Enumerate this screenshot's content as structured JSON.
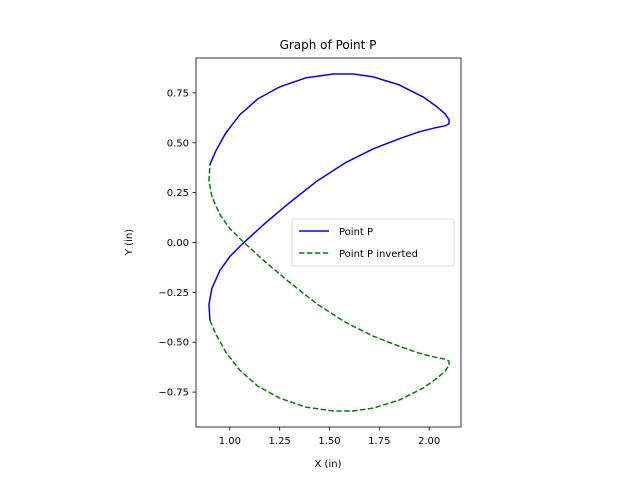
{
  "chart_data": {
    "type": "line",
    "title": "Graph of Point P",
    "xlabel": "X (in)",
    "ylabel": "Y (in)",
    "xlim": [
      0.83,
      2.16
    ],
    "ylim": [
      -0.925,
      0.925
    ],
    "xticks": [
      1.0,
      1.25,
      1.5,
      1.75,
      2.0
    ],
    "xtick_labels": [
      "1.00",
      "1.25",
      "1.50",
      "1.75",
      "2.00"
    ],
    "yticks": [
      -0.75,
      -0.5,
      -0.25,
      0.0,
      0.25,
      0.5,
      0.75
    ],
    "ytick_labels": [
      "−0.75",
      "−0.50",
      "−0.25",
      "0.00",
      "0.25",
      "0.50",
      "0.75"
    ],
    "grid": false,
    "legend_position": "center-right",
    "series": [
      {
        "name": "Point P",
        "color": "#0000ff",
        "style": "solid",
        "x": [
          0.9,
          0.93,
          0.98,
          1.05,
          1.14,
          1.25,
          1.38,
          1.52,
          1.62,
          1.72,
          1.85,
          1.97,
          2.04,
          2.08,
          2.1,
          2.1,
          2.08,
          2.03,
          1.95,
          1.85,
          1.72,
          1.58,
          1.44,
          1.3,
          1.17,
          1.06,
          1.0,
          0.95,
          0.91,
          0.895,
          0.9
        ],
        "y": [
          0.39,
          0.46,
          0.55,
          0.64,
          0.72,
          0.78,
          0.825,
          0.845,
          0.845,
          0.83,
          0.79,
          0.73,
          0.68,
          0.645,
          0.615,
          0.595,
          0.585,
          0.575,
          0.555,
          0.52,
          0.47,
          0.4,
          0.31,
          0.2,
          0.09,
          -0.01,
          -0.07,
          -0.14,
          -0.23,
          -0.31,
          -0.39
        ]
      },
      {
        "name": "Point P inverted",
        "color": "#008000",
        "style": "dashed",
        "x": [
          0.9,
          0.93,
          0.98,
          1.05,
          1.14,
          1.25,
          1.38,
          1.52,
          1.62,
          1.72,
          1.85,
          1.97,
          2.04,
          2.08,
          2.1,
          2.1,
          2.08,
          2.03,
          1.95,
          1.85,
          1.72,
          1.58,
          1.44,
          1.3,
          1.17,
          1.06,
          1.0,
          0.95,
          0.91,
          0.895,
          0.9
        ],
        "y": [
          -0.39,
          -0.46,
          -0.55,
          -0.64,
          -0.72,
          -0.78,
          -0.825,
          -0.845,
          -0.845,
          -0.83,
          -0.79,
          -0.73,
          -0.68,
          -0.645,
          -0.615,
          -0.595,
          -0.585,
          -0.575,
          -0.555,
          -0.52,
          -0.47,
          -0.4,
          -0.31,
          -0.2,
          -0.09,
          0.01,
          0.07,
          0.14,
          0.23,
          0.31,
          0.39
        ]
      }
    ]
  }
}
